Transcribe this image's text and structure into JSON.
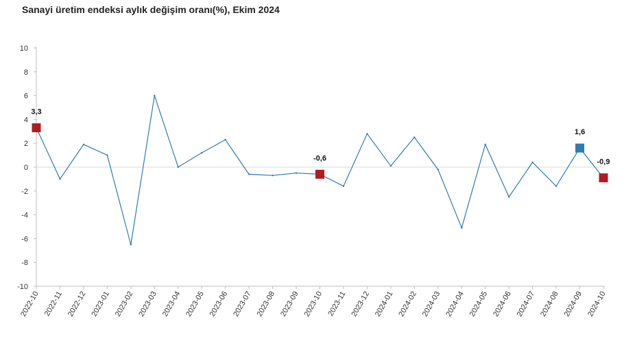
{
  "chart_data": {
    "type": "line",
    "title": "Sanayi üretim endeksi aylık değişim oranı(%), Ekim 2024",
    "xlabel": "",
    "ylabel": "",
    "ylim": [
      -10,
      10
    ],
    "yticks": [
      10,
      8,
      6,
      4,
      2,
      0,
      -2,
      -4,
      -6,
      -8,
      -10
    ],
    "grid": "y=0 only",
    "legend": "none",
    "line_color": "#2e7bb0",
    "categories": [
      "2022-10",
      "2022-11",
      "2022-12",
      "2023-01",
      "2023-02",
      "2023-03",
      "2023-04",
      "2023-05",
      "2023-06",
      "2023-07",
      "2023-08",
      "2023-09",
      "2023-10",
      "2023-11",
      "2023-12",
      "2024-01",
      "2024-02",
      "2024-03",
      "2024-04",
      "2024-05",
      "2024-06",
      "2024-07",
      "2024-08",
      "2024-09",
      "2024-10"
    ],
    "values": [
      3.3,
      -1.0,
      1.9,
      1.0,
      -6.5,
      6.0,
      0.0,
      1.2,
      2.3,
      -0.6,
      -0.7,
      -0.5,
      -0.6,
      -1.6,
      2.8,
      0.1,
      2.5,
      -0.2,
      -5.1,
      1.9,
      -2.5,
      0.4,
      -1.6,
      1.6,
      -0.9
    ],
    "highlights": [
      {
        "index": 0,
        "label": "3,3",
        "color": "#b01c22"
      },
      {
        "index": 12,
        "label": "-0,6",
        "color": "#b01c22"
      },
      {
        "index": 23,
        "label": "1,6",
        "color": "#2e7bb0"
      },
      {
        "index": 24,
        "label": "-0,9",
        "color": "#b01c22"
      }
    ]
  }
}
